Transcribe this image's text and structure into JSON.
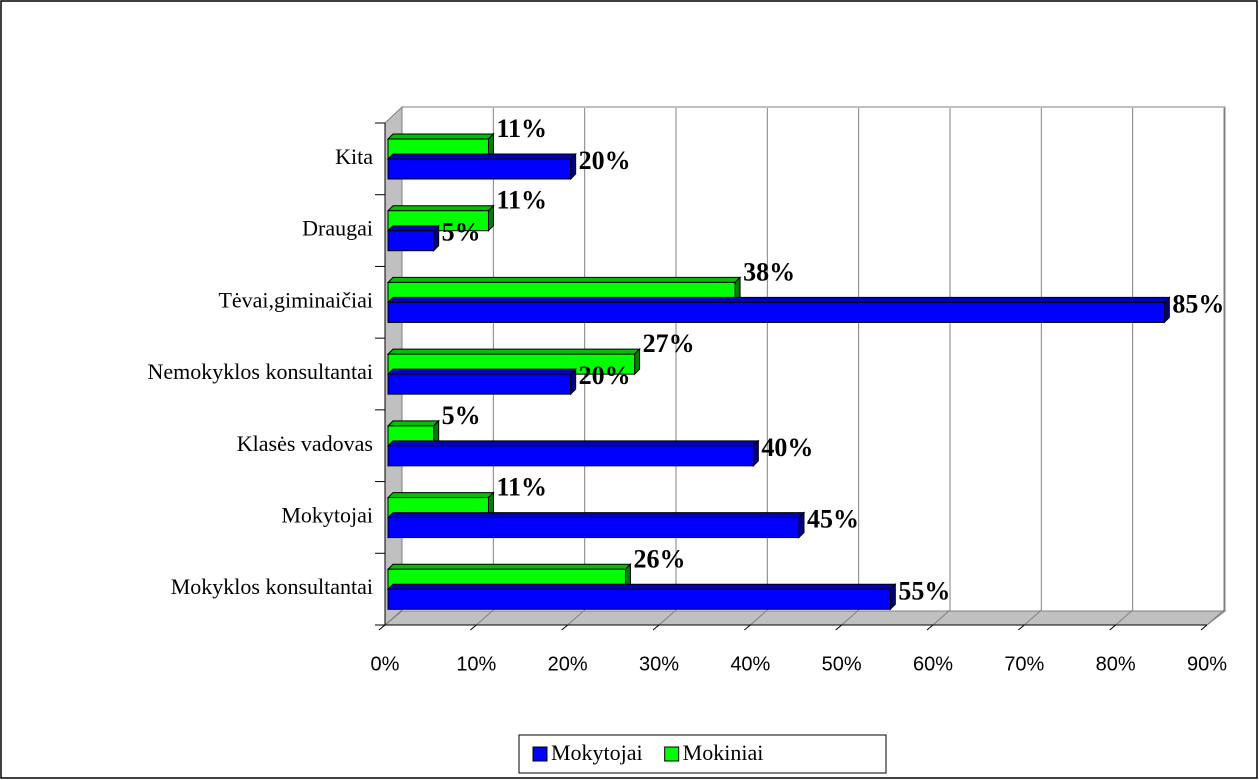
{
  "chart_data": {
    "type": "bar",
    "orientation": "horizontal",
    "categories": [
      "Mokyklos konsultantai",
      "Mokytojai",
      "Klasės vadovas",
      "Nemokyklos konsultantai",
      "Tėvai,giminaičiai",
      "Draugai",
      "Kita"
    ],
    "series": [
      {
        "name": "Mokytojai",
        "color": "#0000ff",
        "values": [
          55,
          45,
          40,
          20,
          85,
          5,
          20
        ],
        "value_labels": [
          "55%",
          "45%",
          "40%",
          "20%",
          "85%",
          "5%",
          "20%"
        ]
      },
      {
        "name": "Mokiniai",
        "color": "#00ff00",
        "values": [
          26,
          11,
          5,
          27,
          38,
          11,
          11
        ],
        "value_labels": [
          "26%",
          "11%",
          "5%",
          "27%",
          "38%",
          "11%",
          "11%"
        ]
      }
    ],
    "xlim": [
      0,
      90
    ],
    "xticks": [
      {
        "value": 0,
        "label": "0%"
      },
      {
        "value": 10,
        "label": "10%"
      },
      {
        "value": 20,
        "label": "20%"
      },
      {
        "value": 30,
        "label": "30%"
      },
      {
        "value": 40,
        "label": "40%"
      },
      {
        "value": 50,
        "label": "50%"
      },
      {
        "value": 60,
        "label": "60%"
      },
      {
        "value": 70,
        "label": "70%"
      },
      {
        "value": 80,
        "label": "80%"
      },
      {
        "value": 90,
        "label": "90%"
      }
    ],
    "grid": true,
    "legend": "bottom"
  }
}
